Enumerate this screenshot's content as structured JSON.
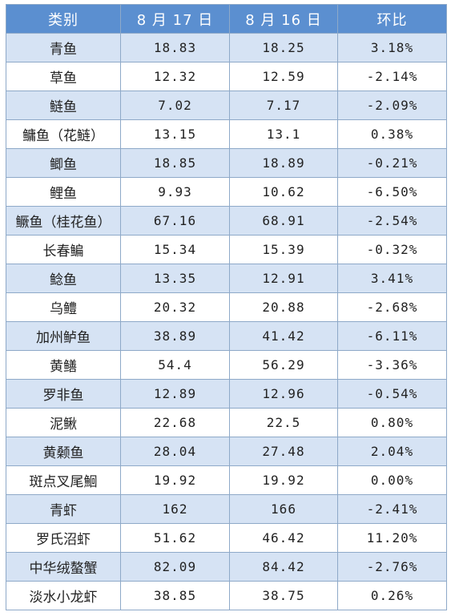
{
  "table": {
    "headers": [
      "类别",
      "8 月 17 日",
      "8 月 16 日",
      "环比"
    ],
    "rows": [
      [
        "青鱼",
        "18.83",
        "18.25",
        "3.18%"
      ],
      [
        "草鱼",
        "12.32",
        "12.59",
        "-2.14%"
      ],
      [
        "鲢鱼",
        "7.02",
        "7.17",
        "-2.09%"
      ],
      [
        "鳙鱼（花鲢）",
        "13.15",
        "13.1",
        "0.38%"
      ],
      [
        "鲫鱼",
        "18.85",
        "18.89",
        "-0.21%"
      ],
      [
        "鲤鱼",
        "9.93",
        "10.62",
        "-6.50%"
      ],
      [
        "鳜鱼（桂花鱼）",
        "67.16",
        "68.91",
        "-2.54%"
      ],
      [
        "长春鳊",
        "15.34",
        "15.39",
        "-0.32%"
      ],
      [
        "鲶鱼",
        "13.35",
        "12.91",
        "3.41%"
      ],
      [
        "乌鳢",
        "20.32",
        "20.88",
        "-2.68%"
      ],
      [
        "加州鲈鱼",
        "38.89",
        "41.42",
        "-6.11%"
      ],
      [
        "黄鳝",
        "54.4",
        "56.29",
        "-3.36%"
      ],
      [
        "罗非鱼",
        "12.89",
        "12.96",
        "-0.54%"
      ],
      [
        "泥鳅",
        "22.68",
        "22.5",
        "0.80%"
      ],
      [
        "黄颡鱼",
        "28.04",
        "27.48",
        "2.04%"
      ],
      [
        "斑点叉尾鮰",
        "19.92",
        "19.92",
        "0.00%"
      ],
      [
        "青虾",
        "162",
        "166",
        "-2.41%"
      ],
      [
        "罗氏沼虾",
        "51.62",
        "46.42",
        "11.20%"
      ],
      [
        "中华绒螯蟹",
        "82.09",
        "84.42",
        "-2.76%"
      ],
      [
        "淡水小龙虾",
        "38.85",
        "38.75",
        "0.26%"
      ]
    ]
  },
  "colors": {
    "header_bg": "#5b8fd0",
    "stripe_bg": "#d6e3f4",
    "border": "#8ea9c8"
  }
}
